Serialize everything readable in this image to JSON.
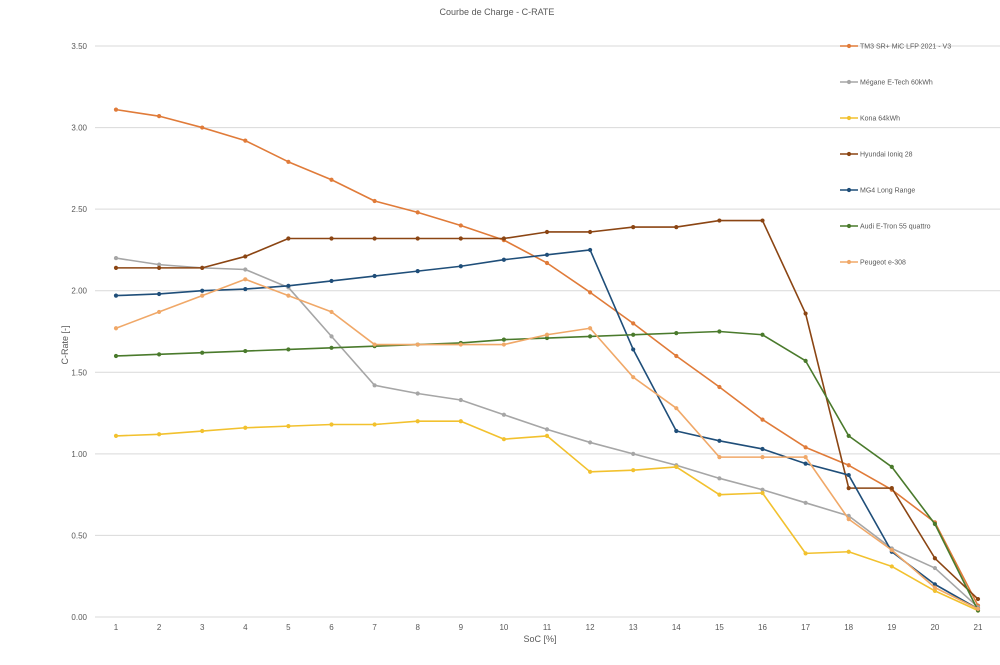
{
  "chart_data": {
    "type": "line",
    "title": "Courbe de Charge - C-RATE",
    "xlabel": "SoC [%]",
    "ylabel": "C-Rate [-]",
    "categories": [
      "1",
      "2",
      "3",
      "4",
      "5",
      "6",
      "7",
      "8",
      "9",
      "10",
      "11",
      "12",
      "13",
      "14",
      "15",
      "16",
      "17",
      "18",
      "19",
      "20",
      "21"
    ],
    "ylim": [
      0,
      3.5
    ],
    "yticks": [
      "0.00",
      "0.50",
      "1.00",
      "1.50",
      "2.00",
      "2.50",
      "3.00",
      "3.50"
    ],
    "grid": true,
    "legend_position": "right",
    "series": [
      {
        "name": "TM3 SR+ MiC LFP 2021 - V3",
        "color": "#e07b39",
        "values": [
          3.11,
          3.07,
          3.0,
          2.92,
          2.79,
          2.68,
          2.55,
          2.48,
          2.4,
          2.31,
          2.17,
          1.99,
          1.8,
          1.6,
          1.41,
          1.21,
          1.04,
          0.93,
          0.78,
          0.58,
          0.07
        ]
      },
      {
        "name": "Mégane E-Tech 60kWh",
        "color": "#a6a6a6",
        "values": [
          2.2,
          2.16,
          2.14,
          2.13,
          2.02,
          1.72,
          1.42,
          1.37,
          1.33,
          1.24,
          1.15,
          1.07,
          1.0,
          0.93,
          0.85,
          0.78,
          0.7,
          0.62,
          0.42,
          0.3,
          0.06
        ]
      },
      {
        "name": "Kona 64kWh",
        "color": "#f2c12e",
        "values": [
          1.11,
          1.12,
          1.14,
          1.16,
          1.17,
          1.18,
          1.18,
          1.2,
          1.2,
          1.09,
          1.11,
          0.89,
          0.9,
          0.92,
          0.75,
          0.76,
          0.39,
          0.4,
          0.31,
          0.16,
          0.04
        ]
      },
      {
        "name": "Hyundai Ioniq 28",
        "color": "#8b4513",
        "values": [
          2.14,
          2.14,
          2.14,
          2.21,
          2.32,
          2.32,
          2.32,
          2.32,
          2.32,
          2.32,
          2.36,
          2.36,
          2.39,
          2.39,
          2.43,
          2.43,
          1.86,
          0.79,
          0.79,
          0.36,
          0.11
        ]
      },
      {
        "name": "MG4 Long Range",
        "color": "#1f4e79",
        "values": [
          1.97,
          1.98,
          2.0,
          2.01,
          2.03,
          2.06,
          2.09,
          2.12,
          2.15,
          2.19,
          2.22,
          2.25,
          1.64,
          1.14,
          1.08,
          1.03,
          0.94,
          0.87,
          0.4,
          0.2,
          0.05
        ]
      },
      {
        "name": "Audi E-Tron 55 quattro",
        "color": "#4a7a2c",
        "values": [
          1.6,
          1.61,
          1.62,
          1.63,
          1.64,
          1.65,
          1.66,
          1.67,
          1.68,
          1.7,
          1.71,
          1.72,
          1.73,
          1.74,
          1.75,
          1.73,
          1.57,
          1.11,
          0.92,
          0.57,
          0.04
        ]
      },
      {
        "name": "Peugeot e-308",
        "color": "#f0a868",
        "values": [
          1.77,
          1.87,
          1.97,
          2.07,
          1.97,
          1.87,
          1.67,
          1.67,
          1.67,
          1.67,
          1.73,
          1.77,
          1.47,
          1.28,
          0.98,
          0.98,
          0.98,
          0.6,
          0.41,
          0.18,
          0.05
        ]
      }
    ]
  }
}
